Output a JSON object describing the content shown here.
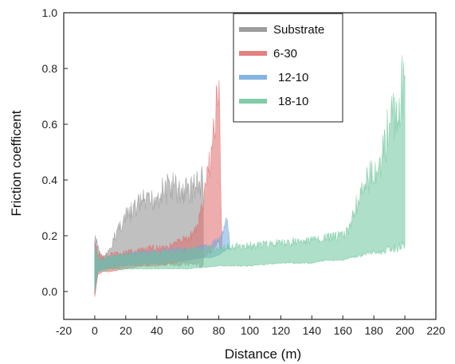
{
  "chart_data": {
    "type": "area",
    "xlabel": "Distance (m)",
    "ylabel": "Friction coefficent",
    "xlim": [
      -20,
      220
    ],
    "ylim": [
      -0.1,
      1.0
    ],
    "xticks": [
      -20,
      0,
      20,
      40,
      60,
      80,
      100,
      120,
      140,
      160,
      180,
      200,
      220
    ],
    "yticks": [
      0.0,
      0.2,
      0.4,
      0.6,
      0.8,
      1.0
    ],
    "grid": false,
    "legend_position": "top-right",
    "series": [
      {
        "name": "Substrate",
        "color": "#8c8c8c",
        "x": [
          0,
          2,
          5,
          10,
          15,
          20,
          25,
          30,
          35,
          40,
          45,
          50,
          55,
          60,
          65,
          70
        ],
        "upper": [
          0.22,
          0.18,
          0.13,
          0.16,
          0.26,
          0.3,
          0.33,
          0.37,
          0.36,
          0.4,
          0.42,
          0.44,
          0.41,
          0.42,
          0.44,
          0.46
        ],
        "lower": [
          -0.02,
          0.07,
          0.08,
          0.08,
          0.08,
          0.09,
          0.09,
          0.09,
          0.09,
          0.09,
          0.09,
          0.09,
          0.09,
          0.09,
          0.09,
          0.08
        ]
      },
      {
        "name": "6-30",
        "color": "#e06a6a",
        "x": [
          0,
          2,
          5,
          10,
          20,
          30,
          40,
          50,
          60,
          65,
          70,
          73,
          76,
          78,
          80,
          82
        ],
        "upper": [
          0.22,
          0.15,
          0.13,
          0.14,
          0.15,
          0.16,
          0.17,
          0.18,
          0.21,
          0.24,
          0.35,
          0.5,
          0.62,
          0.74,
          0.86,
          0.2
        ],
        "lower": [
          -0.02,
          0.06,
          0.07,
          0.07,
          0.08,
          0.09,
          0.09,
          0.1,
          0.11,
          0.12,
          0.12,
          0.13,
          0.14,
          0.14,
          0.15,
          0.15
        ]
      },
      {
        "name": "12-10",
        "color": "#6fa8dc",
        "x": [
          0,
          2,
          5,
          10,
          20,
          30,
          40,
          50,
          60,
          70,
          75,
          80,
          83,
          85,
          87
        ],
        "upper": [
          0.18,
          0.13,
          0.12,
          0.13,
          0.14,
          0.15,
          0.15,
          0.16,
          0.16,
          0.17,
          0.18,
          0.2,
          0.24,
          0.32,
          0.18
        ],
        "lower": [
          0.0,
          0.07,
          0.08,
          0.09,
          0.09,
          0.1,
          0.1,
          0.11,
          0.11,
          0.12,
          0.12,
          0.13,
          0.14,
          0.15,
          0.15
        ]
      },
      {
        "name": "18-10",
        "color": "#6cc49a",
        "x": [
          0,
          2,
          5,
          10,
          20,
          40,
          60,
          80,
          100,
          120,
          140,
          150,
          160,
          165,
          170,
          175,
          180,
          185,
          190,
          195,
          198,
          200
        ],
        "upper": [
          0.2,
          0.13,
          0.12,
          0.13,
          0.14,
          0.15,
          0.16,
          0.17,
          0.18,
          0.19,
          0.2,
          0.21,
          0.22,
          0.26,
          0.38,
          0.45,
          0.5,
          0.55,
          0.7,
          0.74,
          0.86,
          0.8
        ],
        "lower": [
          0.0,
          0.07,
          0.07,
          0.08,
          0.08,
          0.08,
          0.08,
          0.09,
          0.09,
          0.1,
          0.1,
          0.11,
          0.11,
          0.12,
          0.12,
          0.13,
          0.13,
          0.13,
          0.14,
          0.14,
          0.15,
          0.15
        ]
      }
    ]
  }
}
